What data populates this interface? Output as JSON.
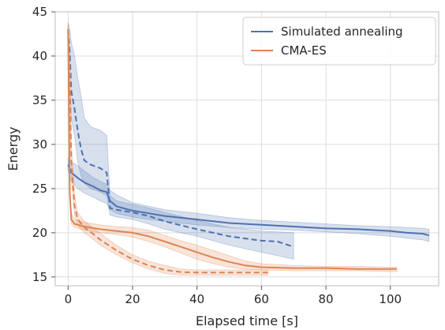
{
  "chart_data": {
    "type": "line",
    "title": "",
    "xlabel": "Elapsed time [s]",
    "ylabel": "Energy",
    "xlim": [
      -4,
      115
    ],
    "ylim": [
      14,
      45
    ],
    "xticks": [
      0,
      20,
      40,
      60,
      80,
      100
    ],
    "yticks": [
      15,
      20,
      25,
      30,
      35,
      40,
      45
    ],
    "grid": true,
    "legend_position": "top-right",
    "series": [
      {
        "name": "Simulated annealing",
        "style": "solid",
        "color": "#4c72b0",
        "x": [
          0,
          1,
          3,
          5,
          8,
          10,
          12,
          13,
          15,
          20,
          25,
          30,
          40,
          50,
          60,
          70,
          80,
          90,
          100,
          105,
          110,
          112
        ],
        "y": [
          27.7,
          26.8,
          26.2,
          25.7,
          25.2,
          24.8,
          24.6,
          23.6,
          23.0,
          22.5,
          22.2,
          21.9,
          21.5,
          21.1,
          20.9,
          20.7,
          20.5,
          20.4,
          20.2,
          20.0,
          19.9,
          19.7
        ],
        "band_low": [
          27.0,
          25.8,
          25.0,
          24.5,
          24.0,
          23.6,
          23.3,
          22.6,
          22.2,
          21.8,
          21.5,
          21.3,
          20.9,
          20.6,
          20.4,
          20.3,
          20.1,
          19.9,
          19.6,
          19.4,
          19.2,
          19.0
        ],
        "band_high": [
          28.4,
          28.0,
          27.6,
          27.0,
          26.2,
          25.8,
          25.5,
          24.8,
          24.3,
          23.4,
          23.0,
          22.6,
          22.2,
          21.7,
          21.4,
          21.2,
          21.0,
          20.8,
          20.7,
          20.6,
          20.5,
          20.4
        ]
      },
      {
        "name": "",
        "style": "dashed",
        "color": "#4c72b0",
        "x": [
          0,
          0.5,
          1,
          2,
          3,
          4,
          5,
          7,
          10,
          12,
          13,
          15,
          20,
          25,
          30,
          40,
          50,
          60,
          65,
          70
        ],
        "y": [
          43.0,
          40.5,
          36.0,
          34.0,
          31.5,
          29.5,
          28.2,
          27.7,
          27.3,
          26.8,
          22.8,
          22.6,
          22.3,
          21.9,
          21.3,
          20.4,
          19.6,
          19.1,
          19.0,
          18.4
        ],
        "band_low": [
          42.5,
          38.5,
          33.0,
          31.0,
          28.0,
          26.5,
          25.6,
          25.0,
          24.6,
          24.2,
          22.0,
          21.8,
          21.5,
          21.0,
          20.4,
          19.6,
          18.6,
          17.8,
          17.4,
          17.0
        ],
        "band_high": [
          43.8,
          43.0,
          41.5,
          40.0,
          37.5,
          35.5,
          33.0,
          32.0,
          31.6,
          31.0,
          24.2,
          23.6,
          23.2,
          22.8,
          22.3,
          21.4,
          20.6,
          20.2,
          20.1,
          20.0
        ]
      },
      {
        "name": "CMA-ES",
        "style": "solid",
        "color": "#dd8452",
        "x": [
          0,
          0.5,
          1,
          2,
          5,
          10,
          15,
          20,
          25,
          30,
          35,
          40,
          45,
          50,
          55,
          60,
          70,
          80,
          90,
          100,
          102
        ],
        "y": [
          43.0,
          24.5,
          21.5,
          21.0,
          20.7,
          20.4,
          20.2,
          20.0,
          19.6,
          19.0,
          18.4,
          17.8,
          17.2,
          16.7,
          16.3,
          16.1,
          16.0,
          16.0,
          15.9,
          15.9,
          15.9
        ],
        "band_low": [
          42.0,
          23.8,
          21.0,
          20.6,
          20.3,
          20.0,
          19.8,
          19.5,
          19.0,
          18.4,
          17.7,
          17.0,
          16.5,
          16.1,
          15.9,
          15.8,
          15.7,
          15.7,
          15.7,
          15.6,
          15.6
        ],
        "band_high": [
          43.5,
          25.5,
          22.2,
          21.5,
          21.2,
          20.9,
          20.7,
          20.6,
          20.3,
          19.7,
          19.1,
          18.6,
          18.0,
          17.4,
          16.8,
          16.5,
          16.3,
          16.2,
          16.2,
          16.1,
          16.1
        ]
      },
      {
        "name": "",
        "style": "dashed",
        "color": "#dd8452",
        "x": [
          0,
          0.5,
          1,
          2,
          3,
          5,
          8,
          10,
          15,
          20,
          25,
          30,
          35,
          40,
          45,
          50,
          55,
          60,
          62
        ],
        "y": [
          43.0,
          38.0,
          28.0,
          23.0,
          21.5,
          20.6,
          19.8,
          19.2,
          18.0,
          17.0,
          16.3,
          15.8,
          15.55,
          15.5,
          15.5,
          15.5,
          15.5,
          15.5,
          15.5
        ],
        "band_low": [
          42.0,
          35.0,
          26.0,
          22.0,
          20.8,
          20.0,
          19.2,
          18.6,
          17.5,
          16.6,
          15.9,
          15.4,
          15.2,
          15.2,
          15.2,
          15.2,
          15.2,
          15.2,
          15.2
        ],
        "band_high": [
          43.6,
          40.5,
          30.0,
          24.2,
          22.3,
          21.3,
          20.5,
          19.9,
          18.6,
          17.5,
          16.8,
          16.3,
          15.9,
          15.8,
          15.8,
          15.8,
          15.8,
          15.8,
          15.8
        ]
      }
    ]
  }
}
